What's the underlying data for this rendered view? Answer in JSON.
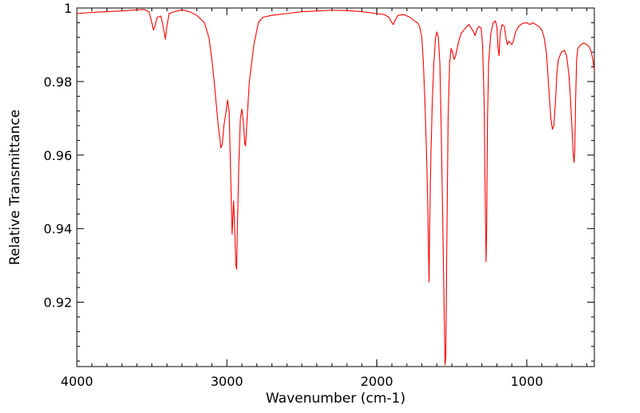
{
  "chart_data": {
    "type": "line",
    "title": "",
    "xlabel": "Wavenumber (cm-1)",
    "ylabel": "Relative Transmittance",
    "xlim": [
      4000,
      550
    ],
    "ylim": [
      0.9025,
      1.0
    ],
    "x_reversed": true,
    "x_ticks": [
      4000,
      3000,
      2000,
      1000
    ],
    "x_tick_labels": [
      "4000",
      "3000",
      "2000",
      "1000"
    ],
    "y_ticks": [
      0.92,
      0.94,
      0.96,
      0.98,
      1.0
    ],
    "y_tick_labels": [
      "0.92",
      "0.94",
      "0.96",
      "0.98",
      "1"
    ],
    "grid": false,
    "legend": "none",
    "series": [
      {
        "color": "#ff0000",
        "points": [
          [
            4000,
            0.9985
          ],
          [
            3900,
            0.9988
          ],
          [
            3800,
            0.999
          ],
          [
            3700,
            0.9992
          ],
          [
            3600,
            0.9995
          ],
          [
            3550,
            0.9996
          ],
          [
            3520,
            0.999
          ],
          [
            3500,
            0.996
          ],
          [
            3490,
            0.994
          ],
          [
            3480,
            0.995
          ],
          [
            3465,
            0.9975
          ],
          [
            3440,
            0.9978
          ],
          [
            3420,
            0.994
          ],
          [
            3410,
            0.9915
          ],
          [
            3400,
            0.995
          ],
          [
            3385,
            0.9985
          ],
          [
            3350,
            0.999
          ],
          [
            3300,
            0.9995
          ],
          [
            3250,
            0.999
          ],
          [
            3200,
            0.998
          ],
          [
            3150,
            0.996
          ],
          [
            3120,
            0.992
          ],
          [
            3100,
            0.986
          ],
          [
            3080,
            0.978
          ],
          [
            3060,
            0.969
          ],
          [
            3040,
            0.962
          ],
          [
            3030,
            0.963
          ],
          [
            3020,
            0.968
          ],
          [
            3005,
            0.972
          ],
          [
            2995,
            0.975
          ],
          [
            2985,
            0.972
          ],
          [
            2975,
            0.955
          ],
          [
            2965,
            0.9385
          ],
          [
            2960,
            0.943
          ],
          [
            2955,
            0.9475
          ],
          [
            2948,
            0.94
          ],
          [
            2940,
            0.93
          ],
          [
            2935,
            0.929
          ],
          [
            2930,
            0.94
          ],
          [
            2920,
            0.958
          ],
          [
            2910,
            0.97
          ],
          [
            2900,
            0.9725
          ],
          [
            2890,
            0.969
          ],
          [
            2880,
            0.963
          ],
          [
            2875,
            0.9625
          ],
          [
            2865,
            0.97
          ],
          [
            2850,
            0.98
          ],
          [
            2820,
            0.99
          ],
          [
            2790,
            0.996
          ],
          [
            2760,
            0.9975
          ],
          [
            2700,
            0.998
          ],
          [
            2600,
            0.9985
          ],
          [
            2500,
            0.999
          ],
          [
            2400,
            0.9992
          ],
          [
            2300,
            0.9994
          ],
          [
            2200,
            0.9993
          ],
          [
            2100,
            0.999
          ],
          [
            2000,
            0.9985
          ],
          [
            1950,
            0.9982
          ],
          [
            1920,
            0.9975
          ],
          [
            1900,
            0.996
          ],
          [
            1890,
            0.9955
          ],
          [
            1880,
            0.9965
          ],
          [
            1860,
            0.998
          ],
          [
            1820,
            0.9982
          ],
          [
            1780,
            0.9975
          ],
          [
            1750,
            0.9965
          ],
          [
            1730,
            0.996
          ],
          [
            1715,
            0.995
          ],
          [
            1700,
            0.992
          ],
          [
            1690,
            0.985
          ],
          [
            1680,
            0.975
          ],
          [
            1670,
            0.962
          ],
          [
            1660,
            0.945
          ],
          [
            1655,
            0.932
          ],
          [
            1652,
            0.9255
          ],
          [
            1648,
            0.94
          ],
          [
            1640,
            0.96
          ],
          [
            1630,
            0.975
          ],
          [
            1620,
            0.985
          ],
          [
            1610,
            0.9915
          ],
          [
            1600,
            0.9935
          ],
          [
            1590,
            0.992
          ],
          [
            1580,
            0.985
          ],
          [
            1570,
            0.965
          ],
          [
            1560,
            0.94
          ],
          [
            1550,
            0.915
          ],
          [
            1545,
            0.903
          ],
          [
            1540,
            0.905
          ],
          [
            1535,
            0.93
          ],
          [
            1525,
            0.97
          ],
          [
            1515,
            0.985
          ],
          [
            1505,
            0.989
          ],
          [
            1495,
            0.988
          ],
          [
            1485,
            0.986
          ],
          [
            1475,
            0.987
          ],
          [
            1460,
            0.99
          ],
          [
            1440,
            0.993
          ],
          [
            1420,
            0.994
          ],
          [
            1400,
            0.995
          ],
          [
            1385,
            0.9955
          ],
          [
            1370,
            0.9945
          ],
          [
            1355,
            0.9935
          ],
          [
            1345,
            0.9925
          ],
          [
            1335,
            0.994
          ],
          [
            1320,
            0.995
          ],
          [
            1305,
            0.9945
          ],
          [
            1295,
            0.99
          ],
          [
            1285,
            0.975
          ],
          [
            1278,
            0.95
          ],
          [
            1272,
            0.931
          ],
          [
            1268,
            0.94
          ],
          [
            1262,
            0.97
          ],
          [
            1255,
            0.985
          ],
          [
            1240,
            0.993
          ],
          [
            1225,
            0.996
          ],
          [
            1210,
            0.9965
          ],
          [
            1200,
            0.995
          ],
          [
            1192,
            0.989
          ],
          [
            1185,
            0.987
          ],
          [
            1178,
            0.993
          ],
          [
            1165,
            0.9955
          ],
          [
            1150,
            0.995
          ],
          [
            1140,
            0.992
          ],
          [
            1130,
            0.99
          ],
          [
            1120,
            0.991
          ],
          [
            1110,
            0.9905
          ],
          [
            1100,
            0.99
          ],
          [
            1090,
            0.991
          ],
          [
            1075,
            0.9935
          ],
          [
            1055,
            0.995
          ],
          [
            1030,
            0.9958
          ],
          [
            1000,
            0.996
          ],
          [
            980,
            0.9955
          ],
          [
            960,
            0.996
          ],
          [
            940,
            0.9955
          ],
          [
            920,
            0.995
          ],
          [
            900,
            0.994
          ],
          [
            885,
            0.992
          ],
          [
            870,
            0.988
          ],
          [
            860,
            0.982
          ],
          [
            850,
            0.976
          ],
          [
            840,
            0.97
          ],
          [
            830,
            0.967
          ],
          [
            820,
            0.968
          ],
          [
            810,
            0.974
          ],
          [
            800,
            0.982
          ],
          [
            790,
            0.986
          ],
          [
            770,
            0.988
          ],
          [
            750,
            0.9885
          ],
          [
            735,
            0.987
          ],
          [
            720,
            0.982
          ],
          [
            710,
            0.976
          ],
          [
            700,
            0.968
          ],
          [
            690,
            0.96
          ],
          [
            685,
            0.958
          ],
          [
            680,
            0.962
          ],
          [
            675,
            0.975
          ],
          [
            668,
            0.986
          ],
          [
            660,
            0.989
          ],
          [
            640,
            0.99
          ],
          [
            620,
            0.9905
          ],
          [
            600,
            0.99
          ],
          [
            585,
            0.9895
          ],
          [
            570,
            0.988
          ],
          [
            560,
            0.986
          ],
          [
            550,
            0.983
          ]
        ]
      }
    ]
  }
}
